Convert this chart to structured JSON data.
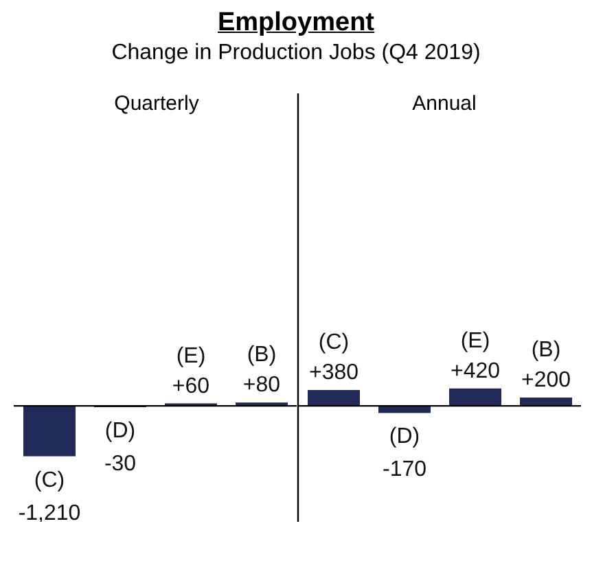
{
  "chart_data": [
    {
      "type": "bar",
      "title": "Employment",
      "subtitle": "Change in Production Jobs (Q4 2019)",
      "annotations": [
        "Quarterly"
      ],
      "categories": [
        "(C)",
        "(D)",
        "(E)",
        "(B)"
      ],
      "values": [
        -1210,
        -30,
        60,
        80
      ],
      "value_labels": [
        "-1,210",
        "-30",
        "+60",
        "+80"
      ],
      "color": "#1f2a56"
    },
    {
      "type": "bar",
      "annotations": [
        "Annual"
      ],
      "categories": [
        "(C)",
        "(D)",
        "(E)",
        "(B)"
      ],
      "values": [
        380,
        -170,
        420,
        200
      ],
      "value_labels": [
        "+380",
        "-170",
        "+420",
        "+200"
      ],
      "color": "#1f2a56"
    }
  ]
}
